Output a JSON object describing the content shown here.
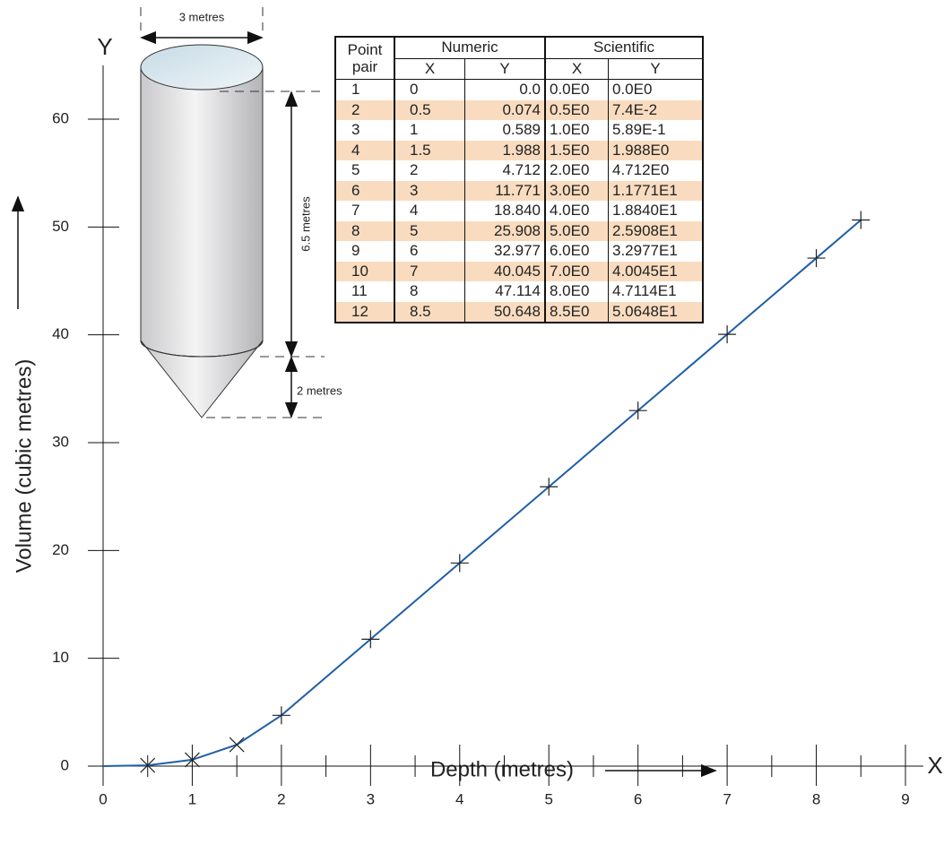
{
  "chart_data": {
    "type": "line",
    "x_label": "Depth (metres)",
    "y_label": "Volume (cubic metres)",
    "x_axis_name": "X",
    "y_axis_name": "Y",
    "x": [
      0,
      0.5,
      1,
      1.5,
      2,
      3,
      4,
      5,
      6,
      7,
      8,
      8.5
    ],
    "series": [
      {
        "color": "#1f5fa8",
        "values": [
          0,
          0.074,
          0.589,
          1.988,
          4.712,
          11.771,
          18.84,
          25.908,
          32.977,
          40.045,
          47.114,
          50.648
        ],
        "markers": [
          "none",
          "x",
          "x",
          "x",
          "+",
          "+",
          "+",
          "+",
          "+",
          "+",
          "+",
          "+"
        ]
      }
    ],
    "xlim": [
      0,
      9.2
    ],
    "ylim": [
      0,
      65
    ],
    "xticks": [
      0,
      1,
      2,
      3,
      4,
      5,
      6,
      7,
      8,
      9
    ],
    "x_minor_ticks": [
      0.5,
      1.5,
      2.5,
      3.5,
      4.5,
      5.5,
      6.5,
      7.5,
      8.5
    ],
    "yticks": [
      0,
      10,
      20,
      30,
      40,
      50,
      60
    ]
  },
  "table": {
    "header": {
      "point_pair": "Point pair",
      "numeric": "Numeric",
      "scientific": "Scientific",
      "columns": [
        "X",
        "Y",
        "X",
        "Y"
      ]
    },
    "rows": [
      [
        "1",
        "0",
        "0.0",
        "0.0E0",
        "0.0E0"
      ],
      [
        "2",
        "0.5",
        "0.074",
        "0.5E0",
        "7.4E-2"
      ],
      [
        "3",
        "1",
        "0.589",
        "1.0E0",
        "5.89E-1"
      ],
      [
        "4",
        "1.5",
        "1.988",
        "1.5E0",
        "1.988E0"
      ],
      [
        "5",
        "2",
        "4.712",
        "2.0E0",
        "4.712E0"
      ],
      [
        "6",
        "3",
        "11.771",
        "3.0E0",
        "1.1771E1"
      ],
      [
        "7",
        "4",
        "18.840",
        "4.0E0",
        "1.8840E1"
      ],
      [
        "8",
        "5",
        "25.908",
        "5.0E0",
        "2.5908E1"
      ],
      [
        "9",
        "6",
        "32.977",
        "6.0E0",
        "3.2977E1"
      ],
      [
        "10",
        "7",
        "40.045",
        "7.0E0",
        "4.0045E1"
      ],
      [
        "11",
        "8",
        "47.114",
        "8.0E0",
        "4.7114E1"
      ],
      [
        "12",
        "8.5",
        "50.648",
        "8.5E0",
        "5.0648E1"
      ]
    ]
  },
  "diagram": {
    "width_label": "3 metres",
    "height_label": "6.5 metres",
    "cone_label": "2 metres"
  }
}
